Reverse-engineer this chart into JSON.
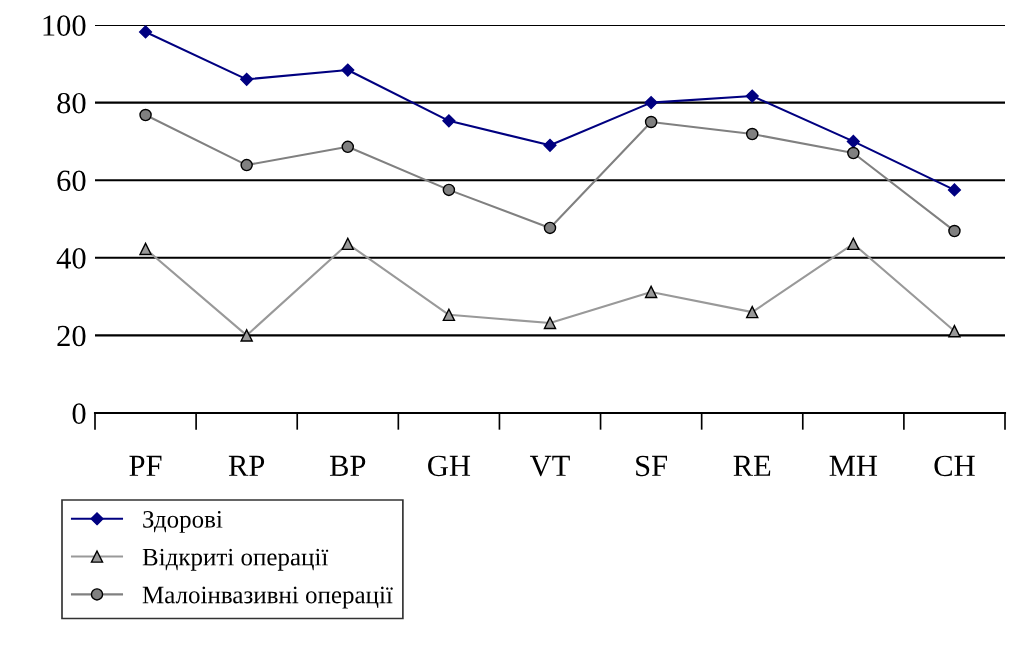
{
  "chart_data": {
    "type": "line",
    "categories": [
      "PF",
      "RP",
      "BP",
      "GH",
      "VT",
      "SF",
      "RE",
      "MH",
      "CH"
    ],
    "series": [
      {
        "name": "Здорові",
        "color": "#000080",
        "marker": "diamond",
        "values": [
          98.2,
          86,
          88.4,
          75.3,
          69,
          80,
          81.7,
          70,
          57.5
        ]
      },
      {
        "name": "Відкриті операції",
        "color": "#999999",
        "marker": "triangle",
        "values": [
          42.3,
          20,
          43.6,
          25.3,
          23.2,
          31.2,
          26,
          43.6,
          21.1
        ]
      },
      {
        "name": "Малоінвазивні операції",
        "color": "#808080",
        "marker": "circle",
        "values": [
          76.8,
          63.9,
          68.6,
          57.5,
          47.7,
          75,
          71.9,
          67,
          46.9
        ]
      }
    ],
    "ylim": [
      0,
      100
    ],
    "yticks": [
      0,
      20,
      40,
      60,
      80,
      100
    ],
    "grid": "y",
    "legend": "bottom left",
    "line_style": "solid"
  }
}
